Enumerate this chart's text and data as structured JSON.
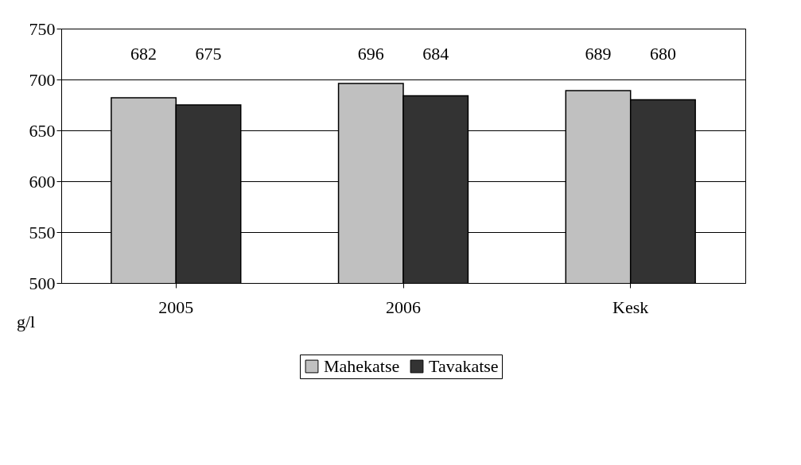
{
  "chart_data": {
    "type": "bar",
    "categories": [
      "2005",
      "2006",
      "Kesk"
    ],
    "series": [
      {
        "name": "Mahekatse",
        "color": "#c0c0c0",
        "values": [
          682,
          696,
          689
        ]
      },
      {
        "name": "Tavakatse",
        "color": "#333333",
        "values": [
          675,
          684,
          680
        ]
      }
    ],
    "ylabel": "g/l",
    "ylim": [
      500,
      750
    ],
    "yticks": [
      500,
      550,
      600,
      650,
      700,
      750
    ],
    "grid": "y",
    "legend": "bottom",
    "data_labels": true
  }
}
